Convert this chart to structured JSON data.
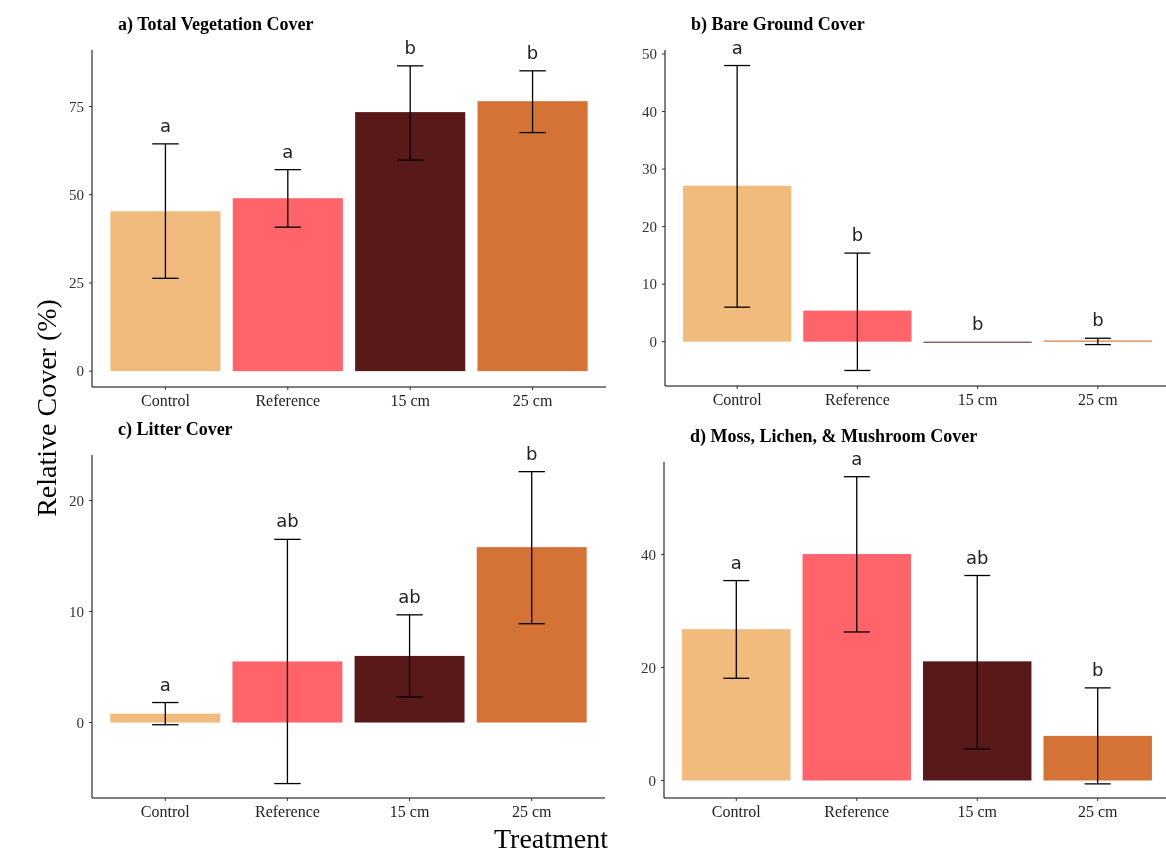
{
  "chart_data": [
    {
      "type": "bar",
      "title": "a) Total Vegetation Cover",
      "ylabel": "Relative Cover (%)",
      "categories": [
        "Control",
        "Reference",
        "15 cm",
        "25 cm"
      ],
      "values": [
        45.3,
        49,
        73.4,
        76.5
      ],
      "colors": [
        "#f0bb7d",
        "#fe6469",
        "#5a1919",
        "#d57236"
      ],
      "errors": [
        [
          26.3,
          64.4
        ],
        [
          40.8,
          57.1
        ],
        [
          59.8,
          86.5
        ],
        [
          67.6,
          85.1
        ]
      ],
      "ylim": [
        -4.5,
        91
      ],
      "yticks": [
        0,
        25,
        50,
        75
      ],
      "grid": false,
      "annotations": [
        "a",
        "a",
        "b",
        "b"
      ]
    },
    {
      "type": "bar",
      "title": "b) Bare Ground Cover",
      "categories": [
        "Control",
        "Reference",
        "15 cm",
        "25 cm"
      ],
      "values": [
        27.1,
        5.4,
        0,
        0.2
      ],
      "colors": [
        "#f0bb7d",
        "#fe6469",
        "#5a1919",
        "#d57236"
      ],
      "errors": [
        [
          6,
          48
        ],
        [
          -5,
          15.4
        ],
        null,
        [
          -0.5,
          0.6
        ]
      ],
      "ylim": [
        -7.7,
        50.7
      ],
      "yticks": [
        0,
        10,
        20,
        30,
        40,
        50
      ],
      "grid": false,
      "annotations": [
        "a",
        "b",
        "b",
        "b"
      ]
    },
    {
      "type": "bar",
      "title": "c) Litter Cover",
      "xlabel": "Treatment",
      "categories": [
        "Control",
        "Reference",
        "15 cm",
        "25 cm"
      ],
      "values": [
        0.8,
        5.5,
        6,
        15.8
      ],
      "colors": [
        "#f0bb7d",
        "#fe6469",
        "#5a1919",
        "#d57236"
      ],
      "errors": [
        [
          -0.2,
          1.8
        ],
        [
          -5.5,
          16.5
        ],
        [
          2.3,
          9.7
        ],
        [
          8.9,
          22.6
        ]
      ],
      "ylim": [
        -6.8,
        24.1
      ],
      "yticks": [
        0,
        10,
        20
      ],
      "grid": false,
      "annotations": [
        "a",
        "ab",
        "ab",
        "b"
      ]
    },
    {
      "type": "bar",
      "title": "d) Moss, Lichen, & Mushroom Cover",
      "categories": [
        "Control",
        "Reference",
        "15 cm",
        "25 cm"
      ],
      "values": [
        26.8,
        40.1,
        21.1,
        7.9
      ],
      "colors": [
        "#f0bb7d",
        "#fe6469",
        "#5a1919",
        "#d57236"
      ],
      "errors": [
        [
          18.1,
          35.4
        ],
        [
          26.3,
          53.8
        ],
        [
          5.6,
          36.3
        ],
        [
          -0.6,
          16.4
        ]
      ],
      "ylim": [
        -3.1,
        56.4
      ],
      "yticks": [
        0,
        20,
        40
      ],
      "grid": false,
      "annotations": [
        "a",
        "a",
        "ab",
        "b"
      ]
    }
  ]
}
